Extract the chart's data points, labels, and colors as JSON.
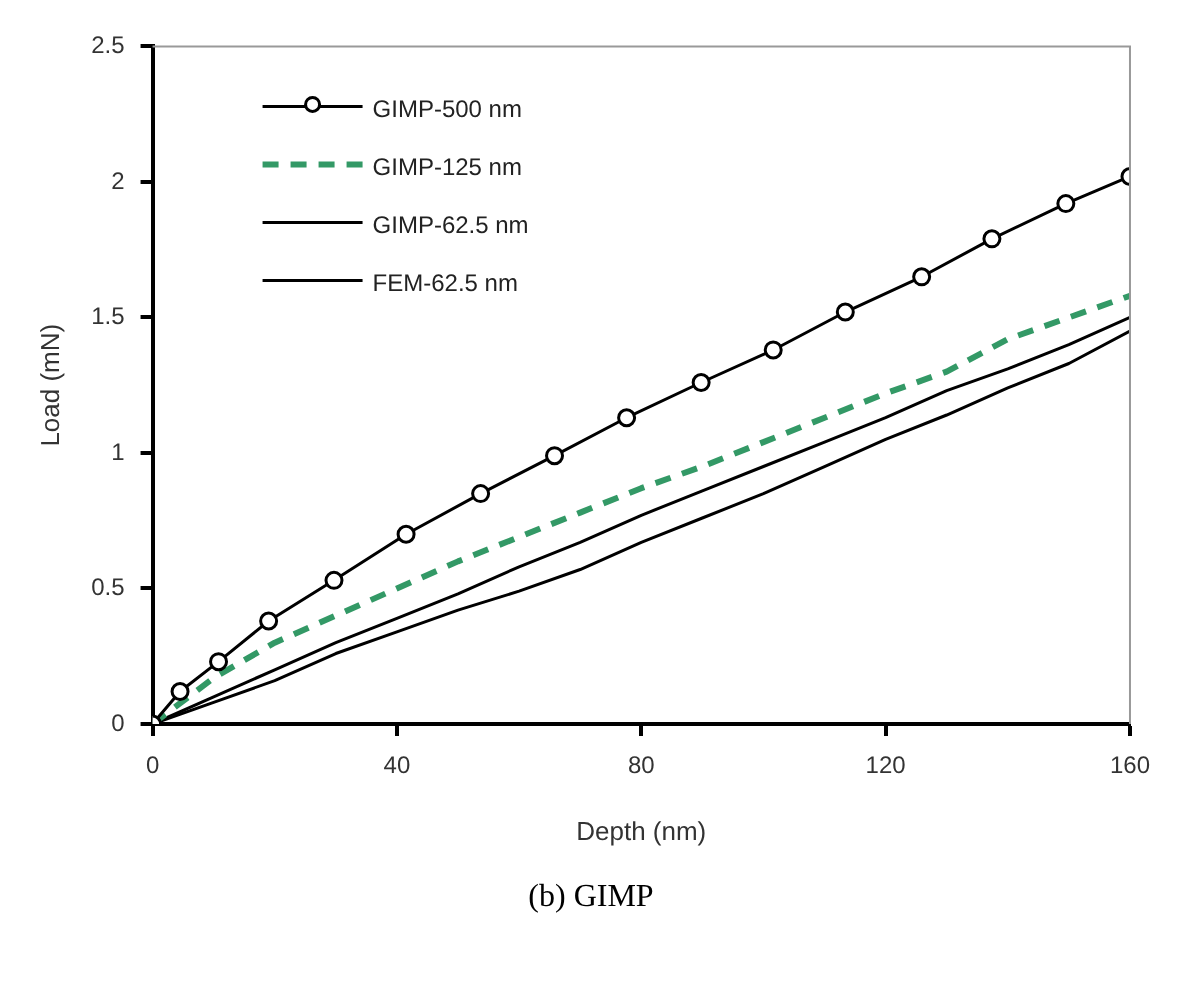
{
  "chart_data": {
    "type": "line",
    "xlabel": "Depth (nm)",
    "ylabel": "Load (mN)",
    "xlim": [
      0,
      160
    ],
    "ylim": [
      0,
      2.5
    ],
    "xticks": [
      0,
      40,
      80,
      120,
      160
    ],
    "yticks": [
      0,
      0.5,
      1,
      1.5,
      2,
      2.5
    ],
    "grid": false,
    "legend": "top left",
    "annotations": [
      "(b) GIMP"
    ],
    "series": [
      {
        "name": "GIMP-500 nm",
        "color": "#000000",
        "marker": "circle",
        "line_style": "solid",
        "x": [
          0,
          4.5,
          10.8,
          19,
          29.7,
          41.5,
          53.7,
          65.8,
          77.6,
          89.8,
          101.6,
          113.4,
          125.9,
          137.4,
          149.5,
          160
        ],
        "values": [
          0,
          0.12,
          0.23,
          0.38,
          0.53,
          0.7,
          0.85,
          0.99,
          1.13,
          1.26,
          1.38,
          1.52,
          1.65,
          1.79,
          1.92,
          2.02
        ]
      },
      {
        "name": "GIMP-125 nm",
        "color": "#339966",
        "marker": "none",
        "line_style": "dashed",
        "x": [
          0,
          10,
          20,
          30,
          40,
          50,
          60,
          70,
          80,
          90,
          100,
          110,
          120,
          130,
          140,
          150,
          160
        ],
        "values": [
          0,
          0.17,
          0.3,
          0.4,
          0.5,
          0.6,
          0.69,
          0.78,
          0.87,
          0.95,
          1.04,
          1.13,
          1.22,
          1.3,
          1.42,
          1.5,
          1.58
        ]
      },
      {
        "name": "GIMP-62.5 nm",
        "color": "#000000",
        "marker": "none",
        "line_style": "solid",
        "x": [
          0,
          10,
          20,
          30,
          40,
          50,
          60,
          70,
          80,
          90,
          100,
          110,
          120,
          130,
          140,
          150,
          160
        ],
        "values": [
          0,
          0.1,
          0.2,
          0.3,
          0.39,
          0.48,
          0.58,
          0.67,
          0.77,
          0.86,
          0.95,
          1.04,
          1.13,
          1.23,
          1.31,
          1.4,
          1.5
        ]
      },
      {
        "name": "FEM-62.5 nm",
        "color": "#000000",
        "marker": "none",
        "line_style": "solid",
        "x": [
          0,
          10,
          20,
          30,
          40,
          50,
          60,
          70,
          80,
          90,
          100,
          110,
          120,
          130,
          140,
          150,
          160
        ],
        "values": [
          0,
          0.08,
          0.16,
          0.26,
          0.34,
          0.42,
          0.49,
          0.57,
          0.67,
          0.76,
          0.85,
          0.95,
          1.05,
          1.14,
          1.24,
          1.33,
          1.45
        ]
      }
    ]
  }
}
